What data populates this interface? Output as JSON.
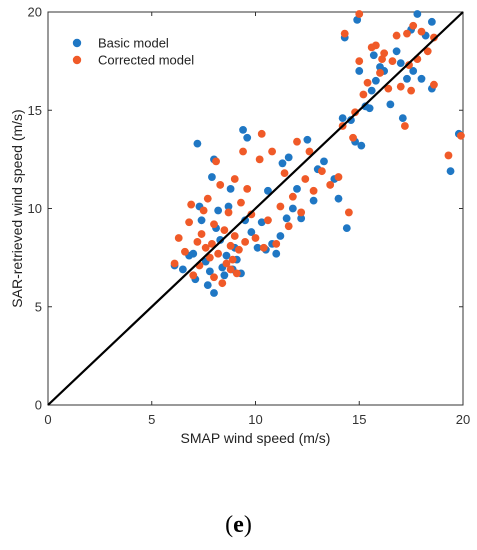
{
  "caption": {
    "open": "(",
    "letter": "e",
    "close": ")"
  },
  "colors": {
    "basic": "#1f77c4",
    "corrected": "#f05a28",
    "overlap": "#8a6a2a",
    "line": "#000000",
    "axis": "#333333"
  },
  "chart_data": {
    "type": "scatter",
    "title": "",
    "xlabel": "SMAP wind speed (m/s)",
    "ylabel": "SAR-retrieved wind speed (m/s)",
    "xlim": [
      0,
      20
    ],
    "ylim": [
      0,
      20
    ],
    "xticks": [
      0,
      5,
      10,
      15,
      20
    ],
    "yticks": [
      0,
      5,
      10,
      15,
      20
    ],
    "grid": false,
    "legend": "top-left",
    "reference_line": {
      "x": [
        0,
        20
      ],
      "y": [
        0,
        20
      ]
    },
    "series": [
      {
        "name": "Basic model",
        "color": "#1f77c4",
        "points": [
          [
            6.1,
            7.1
          ],
          [
            6.5,
            6.9
          ],
          [
            6.8,
            7.6
          ],
          [
            7.0,
            7.7
          ],
          [
            7.1,
            6.4
          ],
          [
            7.2,
            13.3
          ],
          [
            7.3,
            10.1
          ],
          [
            7.4,
            9.4
          ],
          [
            7.6,
            7.3
          ],
          [
            7.7,
            6.1
          ],
          [
            7.8,
            6.8
          ],
          [
            7.9,
            11.6
          ],
          [
            8.0,
            12.5
          ],
          [
            8.0,
            5.7
          ],
          [
            8.1,
            9.0
          ],
          [
            8.2,
            9.9
          ],
          [
            8.3,
            8.4
          ],
          [
            8.4,
            7.0
          ],
          [
            8.5,
            6.6
          ],
          [
            8.6,
            7.6
          ],
          [
            8.7,
            10.1
          ],
          [
            8.8,
            11.0
          ],
          [
            8.9,
            6.9
          ],
          [
            9.0,
            8.0
          ],
          [
            9.1,
            7.4
          ],
          [
            9.3,
            6.7
          ],
          [
            9.4,
            14.0
          ],
          [
            9.5,
            9.4
          ],
          [
            9.6,
            13.6
          ],
          [
            9.8,
            8.8
          ],
          [
            10.1,
            8.0
          ],
          [
            10.3,
            9.3
          ],
          [
            10.5,
            7.9
          ],
          [
            10.6,
            10.9
          ],
          [
            10.8,
            8.2
          ],
          [
            11.0,
            7.7
          ],
          [
            11.2,
            8.6
          ],
          [
            11.3,
            12.3
          ],
          [
            11.5,
            9.5
          ],
          [
            11.6,
            12.6
          ],
          [
            11.8,
            10.0
          ],
          [
            12.0,
            11.0
          ],
          [
            12.2,
            9.5
          ],
          [
            12.5,
            13.5
          ],
          [
            12.8,
            10.4
          ],
          [
            13.0,
            12.0
          ],
          [
            13.3,
            12.4
          ],
          [
            13.8,
            11.5
          ],
          [
            14.0,
            10.5
          ],
          [
            14.2,
            14.6
          ],
          [
            14.3,
            18.7
          ],
          [
            14.4,
            9.0
          ],
          [
            14.6,
            14.5
          ],
          [
            14.8,
            13.4
          ],
          [
            14.9,
            19.6
          ],
          [
            15.0,
            17.0
          ],
          [
            15.1,
            13.2
          ],
          [
            15.3,
            15.2
          ],
          [
            15.5,
            15.1
          ],
          [
            15.6,
            16.0
          ],
          [
            15.7,
            17.8
          ],
          [
            15.8,
            16.5
          ],
          [
            16.0,
            17.2
          ],
          [
            16.2,
            17.0
          ],
          [
            16.5,
            15.3
          ],
          [
            16.8,
            18.0
          ],
          [
            17.0,
            17.4
          ],
          [
            17.1,
            14.6
          ],
          [
            17.3,
            16.6
          ],
          [
            17.5,
            19.1
          ],
          [
            17.6,
            17.0
          ],
          [
            17.8,
            19.9
          ],
          [
            18.0,
            16.6
          ],
          [
            18.2,
            18.8
          ],
          [
            18.5,
            19.5
          ],
          [
            18.5,
            16.1
          ],
          [
            19.4,
            11.9
          ],
          [
            19.8,
            13.8
          ]
        ]
      },
      {
        "name": "Corrected model",
        "color": "#f05a28",
        "points": [
          [
            6.1,
            7.2
          ],
          [
            6.3,
            8.5
          ],
          [
            6.6,
            7.8
          ],
          [
            6.8,
            9.3
          ],
          [
            6.9,
            10.2
          ],
          [
            7.0,
            6.6
          ],
          [
            7.2,
            8.3
          ],
          [
            7.3,
            7.1
          ],
          [
            7.4,
            8.7
          ],
          [
            7.5,
            9.9
          ],
          [
            7.6,
            8.0
          ],
          [
            7.7,
            10.5
          ],
          [
            7.8,
            7.5
          ],
          [
            7.9,
            8.2
          ],
          [
            8.0,
            6.5
          ],
          [
            8.0,
            9.2
          ],
          [
            8.1,
            12.4
          ],
          [
            8.2,
            7.7
          ],
          [
            8.3,
            11.2
          ],
          [
            8.4,
            6.2
          ],
          [
            8.5,
            8.9
          ],
          [
            8.6,
            7.2
          ],
          [
            8.7,
            9.8
          ],
          [
            8.8,
            8.1
          ],
          [
            8.8,
            6.9
          ],
          [
            8.9,
            7.4
          ],
          [
            9.0,
            11.5
          ],
          [
            9.0,
            8.6
          ],
          [
            9.1,
            6.7
          ],
          [
            9.2,
            7.9
          ],
          [
            9.3,
            10.3
          ],
          [
            9.4,
            12.9
          ],
          [
            9.5,
            8.3
          ],
          [
            9.6,
            11.0
          ],
          [
            9.8,
            9.7
          ],
          [
            10.0,
            8.5
          ],
          [
            10.2,
            12.5
          ],
          [
            10.3,
            13.8
          ],
          [
            10.4,
            8.0
          ],
          [
            10.6,
            9.4
          ],
          [
            10.8,
            12.9
          ],
          [
            11.0,
            8.2
          ],
          [
            11.2,
            10.1
          ],
          [
            11.4,
            11.8
          ],
          [
            11.6,
            9.1
          ],
          [
            11.8,
            10.6
          ],
          [
            12.0,
            13.4
          ],
          [
            12.2,
            9.8
          ],
          [
            12.4,
            11.5
          ],
          [
            12.6,
            12.9
          ],
          [
            12.8,
            10.9
          ],
          [
            13.2,
            11.9
          ],
          [
            13.6,
            11.2
          ],
          [
            14.0,
            11.6
          ],
          [
            14.2,
            14.2
          ],
          [
            14.3,
            18.9
          ],
          [
            14.5,
            9.8
          ],
          [
            14.7,
            13.6
          ],
          [
            14.8,
            14.9
          ],
          [
            15.0,
            19.9
          ],
          [
            15.0,
            17.5
          ],
          [
            15.2,
            15.8
          ],
          [
            15.4,
            16.4
          ],
          [
            15.6,
            18.2
          ],
          [
            15.8,
            18.3
          ],
          [
            16.0,
            16.9
          ],
          [
            16.1,
            17.6
          ],
          [
            16.2,
            17.9
          ],
          [
            16.4,
            16.1
          ],
          [
            16.6,
            17.5
          ],
          [
            16.8,
            18.8
          ],
          [
            17.0,
            16.2
          ],
          [
            17.2,
            14.2
          ],
          [
            17.3,
            18.9
          ],
          [
            17.4,
            17.3
          ],
          [
            17.5,
            16.0
          ],
          [
            17.6,
            19.3
          ],
          [
            17.8,
            17.6
          ],
          [
            18.0,
            19.0
          ],
          [
            18.3,
            18.0
          ],
          [
            18.6,
            18.7
          ],
          [
            18.6,
            16.3
          ],
          [
            19.3,
            12.7
          ],
          [
            19.9,
            13.7
          ]
        ]
      }
    ]
  }
}
